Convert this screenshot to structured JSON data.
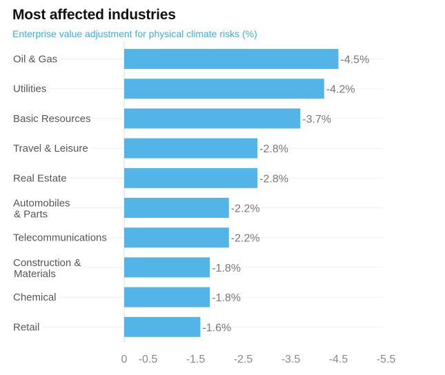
{
  "chart_data": {
    "type": "bar",
    "orientation": "horizontal",
    "title": "Most affected industries",
    "subtitle": "Enterprise value adjustment for physical climate risks (%)",
    "categories": [
      [
        "Oil & Gas"
      ],
      [
        "Utilities"
      ],
      [
        "Basic Resources"
      ],
      [
        "Travel & Leisure"
      ],
      [
        "Real Estate"
      ],
      [
        "Automobiles",
        "& Parts"
      ],
      [
        "Telecommunications"
      ],
      [
        "Construction &",
        "Materials"
      ],
      [
        "Chemical"
      ],
      [
        "Retail"
      ]
    ],
    "values": [
      -4.5,
      -4.2,
      -3.7,
      -2.8,
      -2.8,
      -2.2,
      -2.2,
      -1.8,
      -1.8,
      -1.6
    ],
    "value_labels": [
      "-4.5%",
      "-4.2%",
      "-3.7%",
      "-2.8%",
      "-2.8%",
      "-2.2%",
      "-2.2%",
      "-1.8%",
      "-1.8%",
      "-1.6%"
    ],
    "x_ticks": [
      0,
      -0.5,
      -1.5,
      -2.5,
      -3.5,
      -4.5,
      -5.5
    ],
    "x_tick_labels": [
      "0",
      "-0.5",
      "-1.5",
      "-2.5",
      "-3.5",
      "-4.5",
      "-5.5"
    ],
    "xlim": [
      0,
      -5.5
    ],
    "bar_color": "#53b4e8"
  }
}
